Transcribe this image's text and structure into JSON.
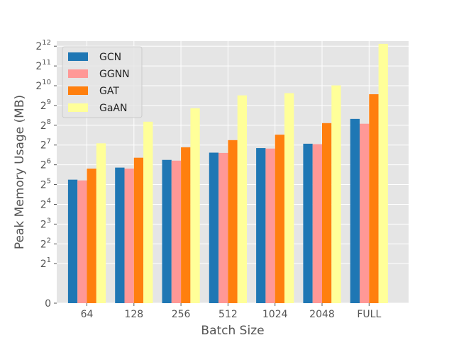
{
  "chart_data": {
    "type": "bar",
    "xlabel": "Batch Size",
    "ylabel": "Peak Memory Usage (MB)",
    "yscale": "log2",
    "ylim": [
      0,
      4900
    ],
    "categories": [
      "64",
      "128",
      "256",
      "512",
      "1024",
      "2048",
      "FULL"
    ],
    "yticks": [
      {
        "value": 0,
        "base": "0",
        "exp": ""
      },
      {
        "value": 2,
        "base": "2",
        "exp": "1"
      },
      {
        "value": 4,
        "base": "2",
        "exp": "2"
      },
      {
        "value": 8,
        "base": "2",
        "exp": "3"
      },
      {
        "value": 16,
        "base": "2",
        "exp": "4"
      },
      {
        "value": 32,
        "base": "2",
        "exp": "5"
      },
      {
        "value": 64,
        "base": "2",
        "exp": "6"
      },
      {
        "value": 128,
        "base": "2",
        "exp": "7"
      },
      {
        "value": 256,
        "base": "2",
        "exp": "8"
      },
      {
        "value": 512,
        "base": "2",
        "exp": "9"
      },
      {
        "value": 1024,
        "base": "2",
        "exp": "10"
      },
      {
        "value": 2048,
        "base": "2",
        "exp": "11"
      },
      {
        "value": 4096,
        "base": "2",
        "exp": "12"
      }
    ],
    "series": [
      {
        "name": "GCN",
        "color": "#1f77b4",
        "values": [
          38,
          58,
          76,
          98,
          115,
          134,
          320
        ]
      },
      {
        "name": "GGNN",
        "color": "#ff9896",
        "values": [
          37,
          56,
          74,
          97,
          113,
          132,
          270
        ]
      },
      {
        "name": "GAT",
        "color": "#ff7f0e",
        "values": [
          56,
          82,
          118,
          152,
          184,
          276,
          760
        ]
      },
      {
        "name": "GaAN",
        "color": "#ffff99",
        "values": [
          136,
          290,
          465,
          730,
          790,
          1036,
          4450
        ]
      }
    ],
    "grid": true,
    "legend_position": "top-left"
  }
}
